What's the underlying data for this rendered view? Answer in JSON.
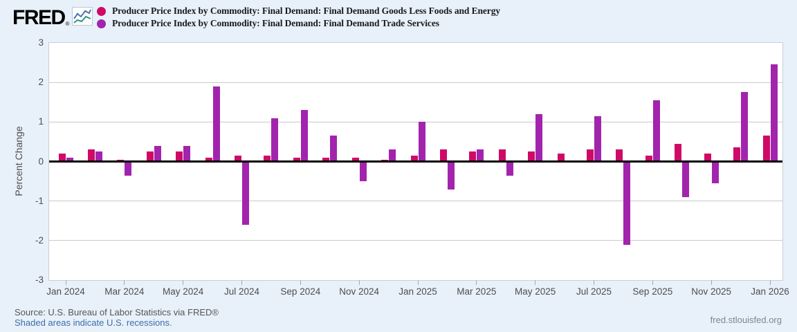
{
  "header": {
    "logo_text": "FRED",
    "logo_registered": "®",
    "sparkline_icon": "fred-sparkline-icon"
  },
  "legend": [
    {
      "label": "Producer Price Index by Commodity: Final Demand: Final Demand Goods Less Foods and Energy",
      "color": "#cf0a66"
    },
    {
      "label": "Producer Price Index by Commodity: Final Demand: Final Demand Trade Services",
      "color": "#a224ad"
    }
  ],
  "chart_data": {
    "type": "bar",
    "title": "",
    "xlabel": "",
    "ylabel": "Percent Change",
    "ylim": [
      -3,
      3
    ],
    "yticks": [
      3,
      2,
      1,
      0,
      -1,
      -2,
      -3
    ],
    "grid": true,
    "legend_position": "top",
    "zero_line": true,
    "categories": [
      "Jan 2024",
      "Feb 2024",
      "Mar 2024",
      "Apr 2024",
      "May 2024",
      "Jun 2024",
      "Jul 2024",
      "Aug 2024",
      "Sep 2024",
      "Oct 2024",
      "Nov 2024",
      "Dec 2024",
      "Jan 2025",
      "Feb 2025",
      "Mar 2025",
      "Apr 2025",
      "May 2025",
      "Jun 2025",
      "Jul 2025",
      "Aug 2025",
      "Sep 2025",
      "Oct 2025",
      "Nov 2025",
      "Dec 2025",
      "Jan 2026"
    ],
    "x_tick_labels": [
      "Jan 2024",
      "Mar 2024",
      "May 2024",
      "Jul 2024",
      "Sep 2024",
      "Nov 2024",
      "Jan 2025",
      "Mar 2025",
      "May 2025",
      "Jul 2025",
      "Sep 2025",
      "Nov 2025",
      "Jan 2026"
    ],
    "series": [
      {
        "name": "Producer Price Index by Commodity: Final Demand: Final Demand Goods Less Foods and Energy",
        "color": "#cf0a66",
        "values": [
          0.2,
          0.3,
          0.05,
          0.25,
          0.25,
          0.1,
          0.15,
          0.15,
          0.1,
          0.1,
          0.1,
          0.05,
          0.15,
          0.3,
          0.25,
          0.3,
          0.25,
          0.2,
          0.3,
          0.3,
          0.15,
          0.45,
          0.2,
          0.35,
          0.65
        ]
      },
      {
        "name": "Producer Price Index by Commodity: Final Demand: Final Demand Trade Services",
        "color": "#a224ad",
        "values": [
          0.1,
          0.25,
          -0.35,
          0.4,
          0.4,
          1.9,
          -1.6,
          1.1,
          1.3,
          0.65,
          -0.5,
          0.3,
          1.0,
          -0.7,
          0.3,
          -0.35,
          1.2,
          0.0,
          1.15,
          -2.1,
          1.55,
          -0.9,
          -0.55,
          1.75,
          2.45
        ]
      }
    ]
  },
  "footer": {
    "source_line": "Source: U.S. Bureau of Labor Statistics via FRED®",
    "recession_note": "Shaded areas indicate U.S. recessions.",
    "site_link": "fred.stlouisfed.org"
  }
}
